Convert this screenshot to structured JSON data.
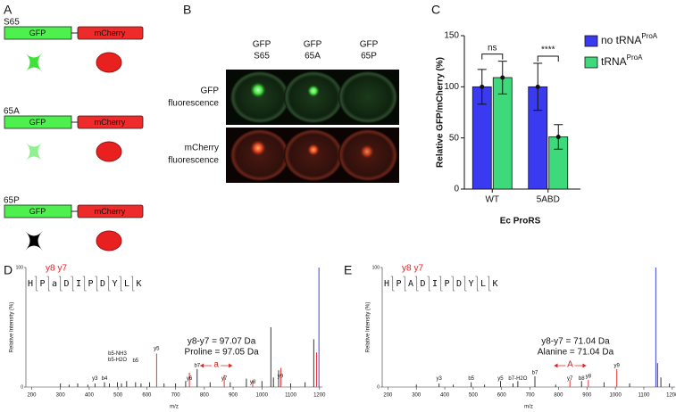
{
  "panel_labels": [
    "A",
    "B",
    "C",
    "D",
    "E"
  ],
  "panel_a": {
    "constructs": [
      {
        "label": "S65",
        "gfp": "GFP",
        "mcherry": "mCherry"
      },
      {
        "label": "65A",
        "gfp": "GFP",
        "mcherry": "mCherry"
      },
      {
        "label": "65P",
        "gfp": "GFP",
        "mcherry": "mCherry"
      }
    ]
  },
  "panel_b": {
    "columns": [
      [
        "GFP",
        "S65"
      ],
      [
        "GFP",
        "65A"
      ],
      [
        "GFP",
        "65P"
      ]
    ],
    "rows": [
      [
        "GFP",
        "fluorescence"
      ],
      [
        "mCherry",
        "fluorescence"
      ]
    ]
  },
  "chart_data": [
    {
      "type": "bar",
      "y_label": "Relative GFP/mCherry (%)",
      "x_label": "Ec ProRS",
      "categories": [
        "WT",
        "5ABD"
      ],
      "series": [
        {
          "name": "no tRNA",
          "name_superscript": "ProA",
          "color": "#3a3af0",
          "values": [
            100,
            100
          ],
          "errors": [
            17,
            23
          ]
        },
        {
          "name": "tRNA",
          "name_superscript": "ProA",
          "color": "#3ed97a",
          "values": [
            109,
            51
          ],
          "errors": [
            16,
            12
          ]
        }
      ],
      "ylim": [
        0,
        150
      ],
      "yticks": [
        0,
        50,
        100,
        150
      ],
      "significance": [
        "ns",
        "****"
      ],
      "legend": "right"
    },
    {
      "type": "spectrum",
      "y_label": "Relative Intensity (%)",
      "x_label": "m/z",
      "xlim": [
        180,
        1210
      ],
      "xticks": [
        200,
        300,
        400,
        500,
        600,
        700,
        800,
        900,
        1000,
        1100,
        1200
      ],
      "ylim": [
        0,
        100
      ],
      "yticks": [
        0,
        100
      ],
      "x": [
        300,
        330,
        360,
        395,
        420,
        453,
        470,
        498,
        512,
        530,
        561,
        580,
        610,
        634,
        660,
        700,
        735,
        748,
        775,
        820,
        869,
        890,
        946,
        968,
        1000,
        1031,
        1040,
        1058,
        1066,
        1100,
        1150,
        1180,
        1190,
        1198
      ],
      "values": [
        3,
        2,
        3,
        2,
        3,
        4,
        3,
        4,
        3,
        5,
        4,
        3,
        4,
        28,
        3,
        3,
        5,
        12,
        15,
        4,
        10,
        4,
        7,
        5,
        5,
        50,
        8,
        14,
        16,
        3,
        4,
        40,
        29,
        100
      ],
      "colors": [
        "#222",
        "#222",
        "#222",
        "#222",
        "#222",
        "#222",
        "#222",
        "#222",
        "#222",
        "#222",
        "#222",
        "#222",
        "#222",
        "#e02020",
        "#222",
        "#222",
        "#222",
        "#e02020",
        "#222",
        "#222",
        "#e02020",
        "#222",
        "#222",
        "#e02020",
        "#222",
        "#222",
        "#222",
        "#222",
        "#e02020",
        "#222",
        "#222",
        "#222",
        "#e02020",
        "#3030d0"
      ],
      "annotations": [
        {
          "text": "y3",
          "x": 420,
          "y": 7
        },
        {
          "text": "b4",
          "x": 453,
          "y": 7
        },
        {
          "text": "b5-NH3",
          "x": 498,
          "y": 28
        },
        {
          "text": "b5-H2O",
          "x": 498,
          "y": 23
        },
        {
          "text": "b5",
          "x": 561,
          "y": 22
        },
        {
          "text": "y5",
          "x": 634,
          "y": 32
        },
        {
          "text": "y6",
          "x": 748,
          "y": 7
        },
        {
          "text": "b7",
          "x": 775,
          "y": 18
        },
        {
          "text": "y7",
          "x": 869,
          "y": 7
        },
        {
          "text": "y8",
          "x": 968,
          "y": 4
        },
        {
          "text": "y9",
          "x": 1064,
          "y": 9
        }
      ],
      "sequence": [
        "H",
        "P",
        "a",
        "D",
        "I",
        "P",
        "D",
        "Y",
        "L",
        "K"
      ],
      "sequence_labels": [
        "y8",
        "y7"
      ],
      "notes": [
        "y8-y7 = 97.07 Da",
        "Proline = 97.05 Da"
      ],
      "difference_label": "a"
    },
    {
      "type": "spectrum",
      "y_label": "Relative Intensity (%)",
      "x_label": "m/z",
      "xlim": [
        180,
        1210
      ],
      "xticks": [
        200,
        300,
        400,
        500,
        600,
        700,
        800,
        900,
        1000,
        1100,
        1200
      ],
      "ylim": [
        0,
        100
      ],
      "yticks": [
        0,
        100
      ],
      "x": [
        300,
        380,
        430,
        493,
        540,
        596,
        640,
        657,
        717,
        790,
        840,
        881,
        905,
        960,
        1005,
        1050,
        1142,
        1148,
        1160,
        1190
      ],
      "values": [
        2,
        3,
        2,
        4,
        2,
        5,
        3,
        5,
        9,
        2,
        6,
        5,
        6,
        4,
        15,
        3,
        100,
        20,
        8,
        3
      ],
      "colors": [
        "#222",
        "#222",
        "#222",
        "#222",
        "#222",
        "#222",
        "#222",
        "#222",
        "#222",
        "#222",
        "#e02020",
        "#222",
        "#e02020",
        "#222",
        "#e02020",
        "#222",
        "#3030d0",
        "#222",
        "#222",
        "#222"
      ],
      "annotations": [
        {
          "text": "y3",
          "x": 380,
          "y": 7
        },
        {
          "text": "b5",
          "x": 493,
          "y": 7
        },
        {
          "text": "y5",
          "x": 596,
          "y": 7
        },
        {
          "text": "b7-H2O",
          "x": 657,
          "y": 7
        },
        {
          "text": "b7",
          "x": 717,
          "y": 12
        },
        {
          "text": "y7",
          "x": 840,
          "y": 7
        },
        {
          "text": "b8",
          "x": 881,
          "y": 7
        },
        {
          "text": "y8",
          "x": 905,
          "y": 9
        },
        {
          "text": "y9",
          "x": 1005,
          "y": 18
        }
      ],
      "sequence": [
        "H",
        "P",
        "A",
        "D",
        "I",
        "P",
        "D",
        "Y",
        "L",
        "K"
      ],
      "sequence_labels": [
        "y8",
        "y7"
      ],
      "notes": [
        "y8-y7 = 71.04 Da",
        "Alanine = 71.04 Da"
      ],
      "difference_label": "A"
    }
  ]
}
